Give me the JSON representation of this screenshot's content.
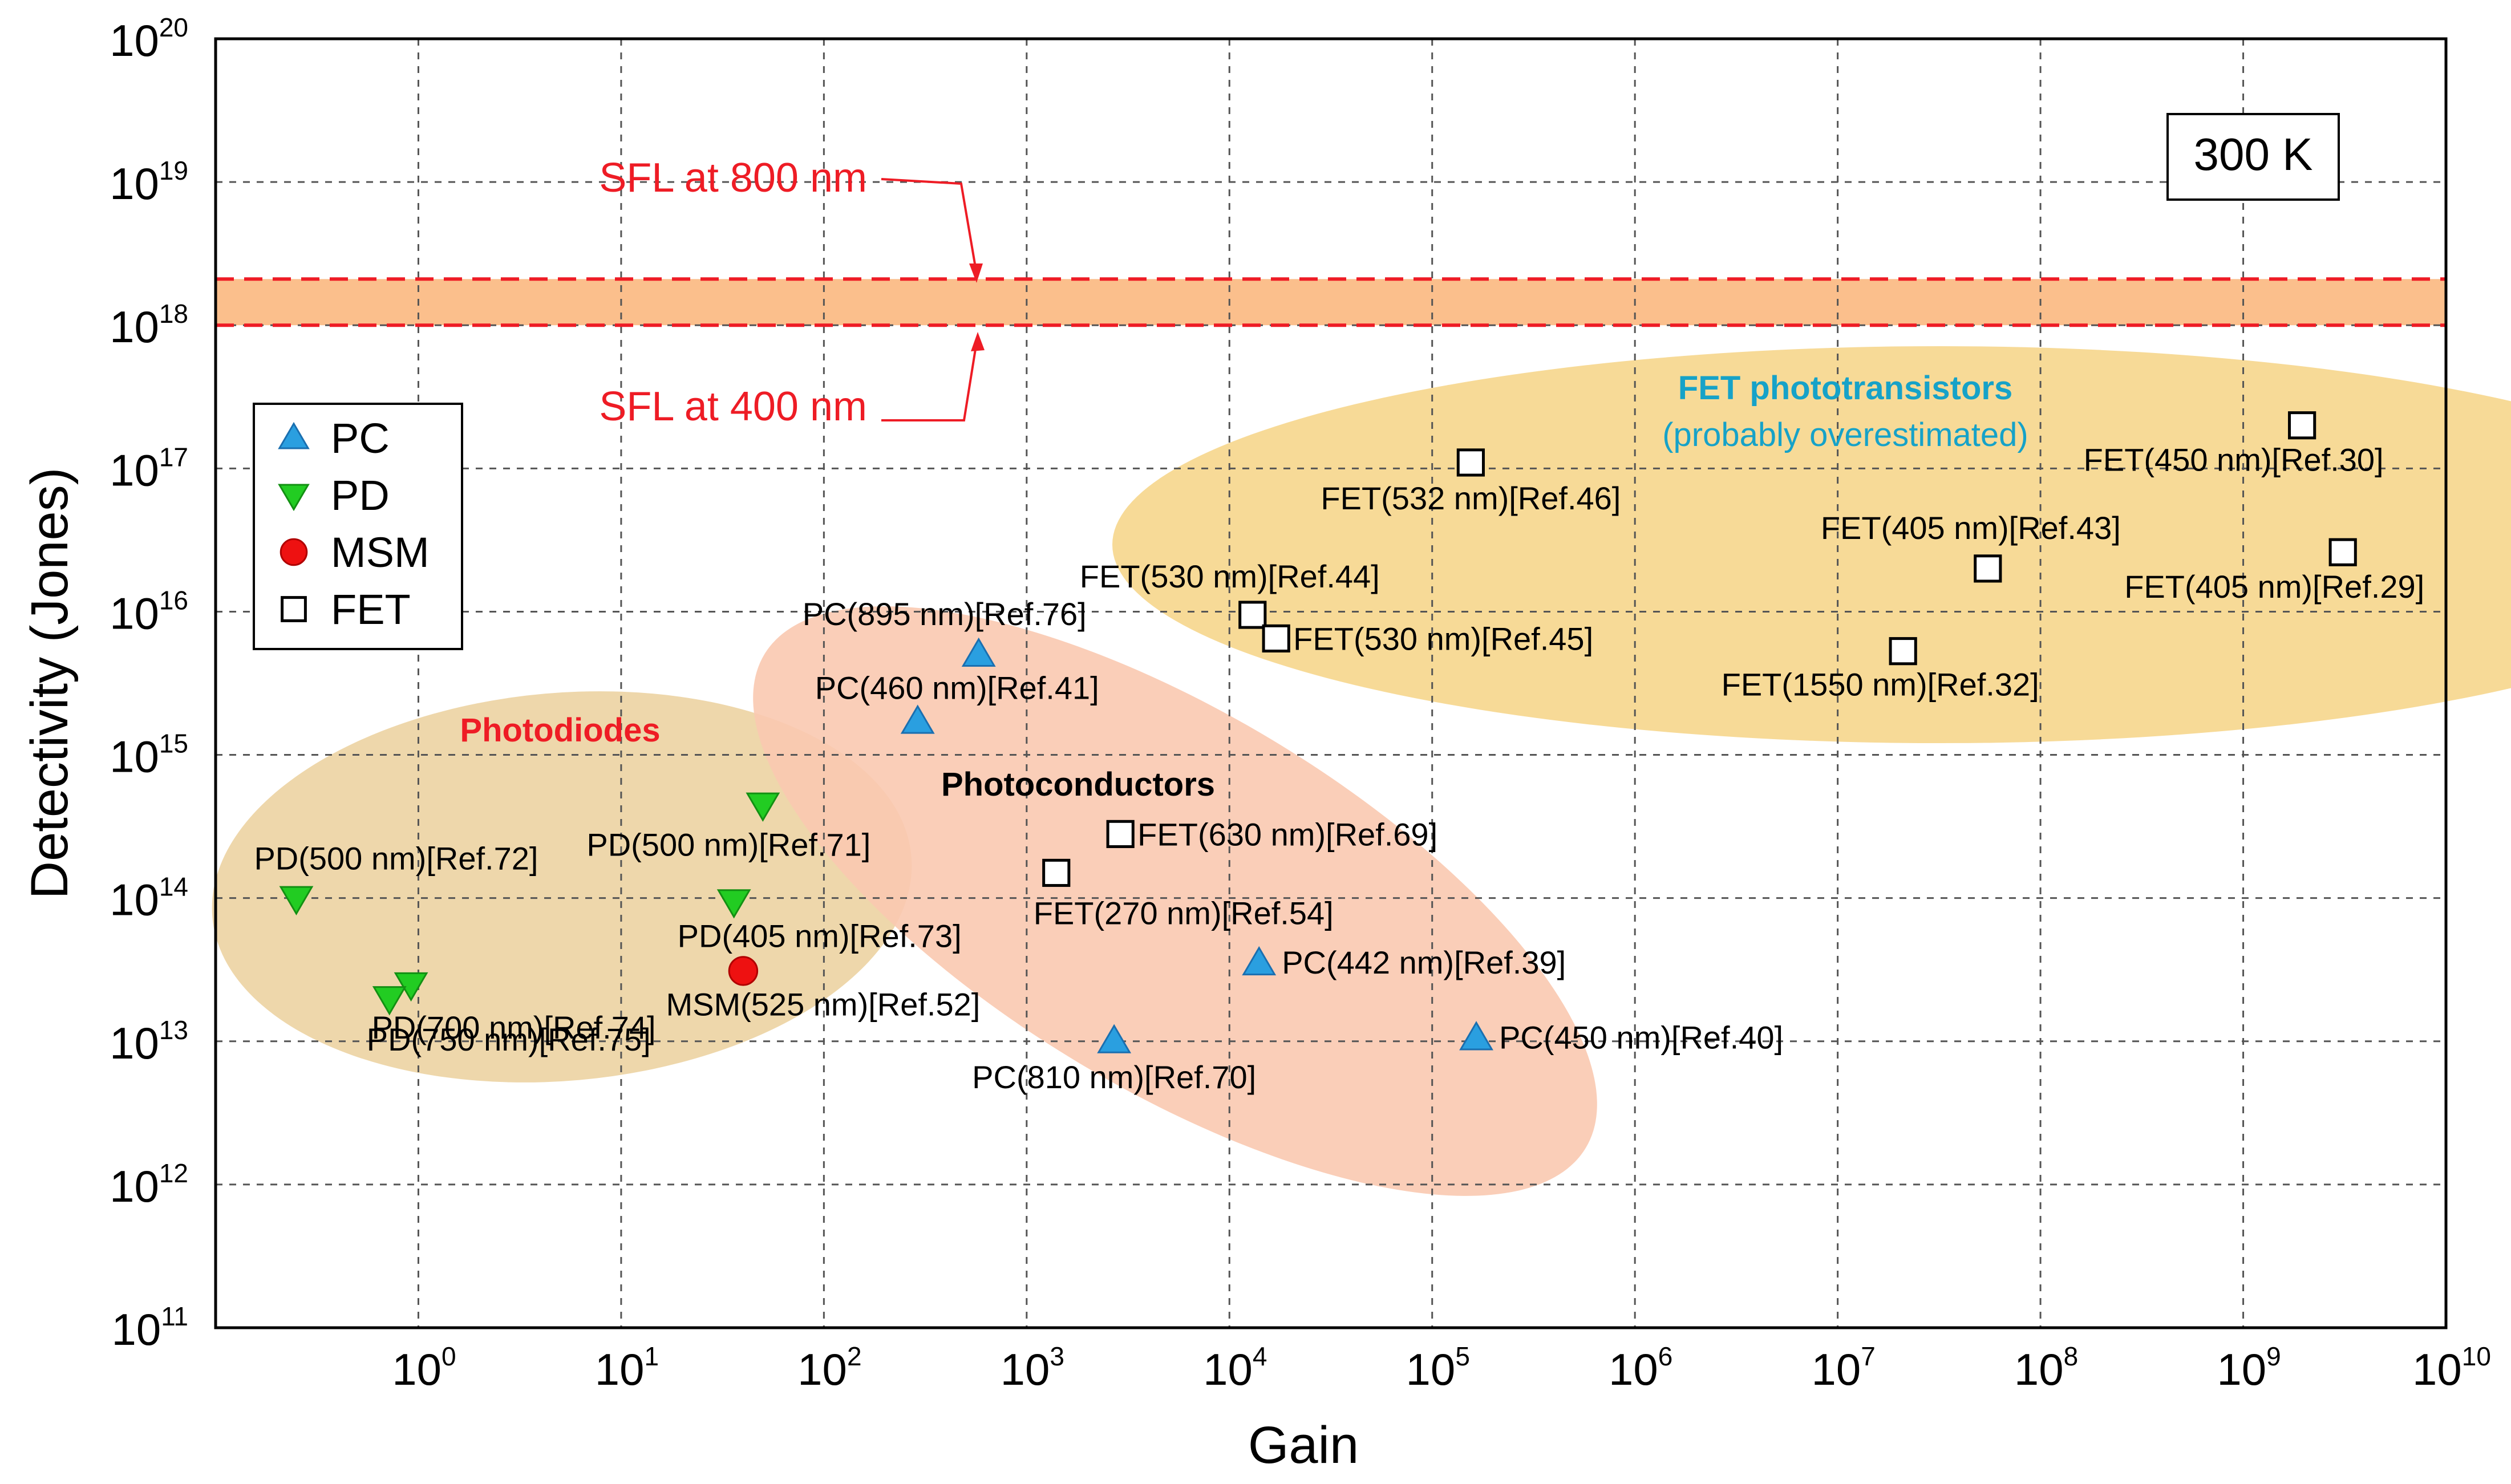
{
  "chart_data": {
    "type": "scatter",
    "title": "",
    "xlabel": "Gain",
    "ylabel": "Detectivity (Jones)",
    "xscale": "log",
    "yscale": "log",
    "xlim": [
      0.1,
      10000000000.0
    ],
    "ylim": [
      100000000000.0,
      1e+20
    ],
    "grid": true,
    "x_ticks": [
      {
        "base": "10",
        "exp": "0",
        "value": 1
      },
      {
        "base": "10",
        "exp": "1",
        "value": 10
      },
      {
        "base": "10",
        "exp": "2",
        "value": 100
      },
      {
        "base": "10",
        "exp": "3",
        "value": 1000
      },
      {
        "base": "10",
        "exp": "4",
        "value": 10000
      },
      {
        "base": "10",
        "exp": "5",
        "value": 100000
      },
      {
        "base": "10",
        "exp": "6",
        "value": 1000000
      },
      {
        "base": "10",
        "exp": "7",
        "value": 10000000
      },
      {
        "base": "10",
        "exp": "8",
        "value": 100000000
      },
      {
        "base": "10",
        "exp": "9",
        "value": 1000000000
      },
      {
        "base": "10",
        "exp": "10",
        "value": 10000000000
      }
    ],
    "y_ticks": [
      {
        "base": "10",
        "exp": "11",
        "value": 100000000000.0
      },
      {
        "base": "10",
        "exp": "12",
        "value": 1000000000000.0
      },
      {
        "base": "10",
        "exp": "13",
        "value": 10000000000000.0
      },
      {
        "base": "10",
        "exp": "14",
        "value": 100000000000000.0
      },
      {
        "base": "10",
        "exp": "15",
        "value": 1000000000000000.0
      },
      {
        "base": "10",
        "exp": "16",
        "value": 1e+16
      },
      {
        "base": "10",
        "exp": "17",
        "value": 1e+17
      },
      {
        "base": "10",
        "exp": "18",
        "value": 1e+18
      },
      {
        "base": "10",
        "exp": "19",
        "value": 1e+19
      },
      {
        "base": "10",
        "exp": "20",
        "value": 1e+20
      }
    ],
    "legend_position": "left-middle",
    "series": [
      {
        "name": "PC",
        "marker": "triangle-up",
        "color": "#2a9fe0",
        "points": [
          {
            "x": 580,
            "y": 5000000000000000.0,
            "label": "PC(895 nm)[Ref.76]"
          },
          {
            "x": 290,
            "y": 1700000000000000.0,
            "label": "PC(460 nm)[Ref.41]"
          },
          {
            "x": 14000,
            "y": 35000000000000.0,
            "label": "PC(442 nm)[Ref.39]"
          },
          {
            "x": 2700,
            "y": 10000000000000.0,
            "label": "PC(810 nm)[Ref.70]"
          },
          {
            "x": 165000,
            "y": 10500000000000.0,
            "label": "PC(450 nm)[Ref.40]"
          }
        ]
      },
      {
        "name": "PD",
        "marker": "triangle-down",
        "color": "#22cc22",
        "points": [
          {
            "x": 0.25,
            "y": 100000000000000.0,
            "label": "PD(500 nm)[Ref.72]"
          },
          {
            "x": 50,
            "y": 450000000000000.0,
            "label": "PD(500 nm)[Ref.71]"
          },
          {
            "x": 0.92,
            "y": 25000000000000.0,
            "label": "PD(700 nm)[Ref.74]"
          },
          {
            "x": 0.72,
            "y": 20000000000000.0,
            "label": "PD(750 nm)[Ref.75]"
          },
          {
            "x": 36,
            "y": 95000000000000.0,
            "label": "PD(405 nm)[Ref.73]"
          }
        ]
      },
      {
        "name": "MSM",
        "marker": "circle",
        "color": "#ee1111",
        "points": [
          {
            "x": 40,
            "y": 31000000000000.0,
            "label": "MSM(525 nm)[Ref.52]"
          }
        ]
      },
      {
        "name": "FET",
        "marker": "square-open",
        "color": "#000000",
        "points": [
          {
            "x": 155000,
            "y": 1.1e+17,
            "label": "FET(532 nm)[Ref.46]"
          },
          {
            "x": 1950000000,
            "y": 2e+17,
            "label": "FET(450 nm)[Ref.30]"
          },
          {
            "x": 55000000,
            "y": 2e+16,
            "label": "FET(405 nm)[Ref.43]"
          },
          {
            "x": 3100000000,
            "y": 2.6e+16,
            "label": "FET(405 nm)[Ref.29]"
          },
          {
            "x": 13000,
            "y": 9500000000000000.0,
            "label": "FET(530 nm)[Ref.44]"
          },
          {
            "x": 17000,
            "y": 6500000000000000.0,
            "label": "FET(530 nm)[Ref.45]"
          },
          {
            "x": 21000000,
            "y": 5300000000000000.0,
            "label": "FET(1550 nm)[Ref.32]"
          },
          {
            "x": 2900,
            "y": 280000000000000.0,
            "label": "FET(630 nm)[Ref.69]"
          },
          {
            "x": 1400,
            "y": 150000000000000.0,
            "label": "FET(270 nm)[Ref.54]"
          }
        ]
      }
    ],
    "reference_lines": [
      {
        "label": "SFL at 800 nm",
        "y": 2.1e+18,
        "color": "#ee1c25",
        "style": "dashed"
      },
      {
        "label": "SFL at 400 nm",
        "y": 1e+18,
        "color": "#ee1c25",
        "style": "dashed"
      }
    ],
    "band_color": "#fbbf8c",
    "regions": [
      {
        "label": "Photodiodes",
        "color": "#ecd3a2"
      },
      {
        "label": "Photoconductors",
        "color": "#f9c9b0"
      },
      {
        "label": "FET phototransistors",
        "sublabel": "(probably overestimated)",
        "color": "#f6d68c"
      }
    ],
    "annotation": "300 K"
  }
}
